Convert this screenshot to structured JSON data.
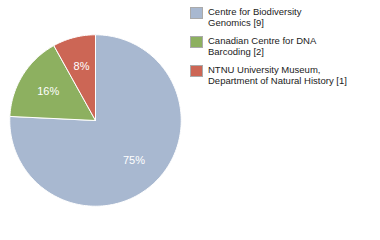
{
  "chart_data": {
    "type": "pie",
    "categories": [
      "Centre for Biodiversity\nGenomics [9]",
      "Canadian Centre for DNA\nBarcoding [2]",
      "NTNU University Museum,\nDepartment of Natural History [1]"
    ],
    "values": [
      75,
      16,
      8
    ],
    "value_labels": [
      "75%",
      "16%",
      "8%"
    ],
    "colors": [
      "#a8b8d0",
      "#8db060",
      "#cc6655"
    ],
    "data_labels": true,
    "legend": "right"
  }
}
